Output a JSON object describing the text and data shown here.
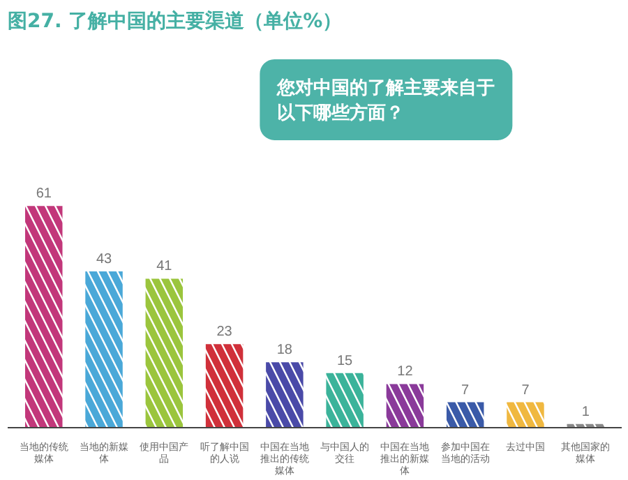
{
  "chart_data": {
    "type": "bar",
    "title": "图27. 了解中国的主要渠道（单位%）",
    "categories": [
      "当地的传统媒体",
      "当地的新媒体",
      "使用中国产品",
      "听了解中国的人说",
      "中国在当地推出的传统媒体",
      "与中国人的交往",
      "中国在当地推出的新媒体",
      "参加中国在当地的活动",
      "去过中国",
      "其他国家的媒体"
    ],
    "values": [
      61,
      43,
      41,
      23,
      18,
      15,
      12,
      7,
      7,
      1
    ],
    "colors": [
      "#c2377a",
      "#4aa8d8",
      "#9bc53d",
      "#d0303a",
      "#4a4aa8",
      "#3bb39a",
      "#8a3a9a",
      "#3a5aa8",
      "#f0b840",
      "#888888"
    ],
    "data_labels": true,
    "grid": false,
    "annotations": [
      "您对中国的了解主要来自于以下哪些方面？"
    ]
  }
}
